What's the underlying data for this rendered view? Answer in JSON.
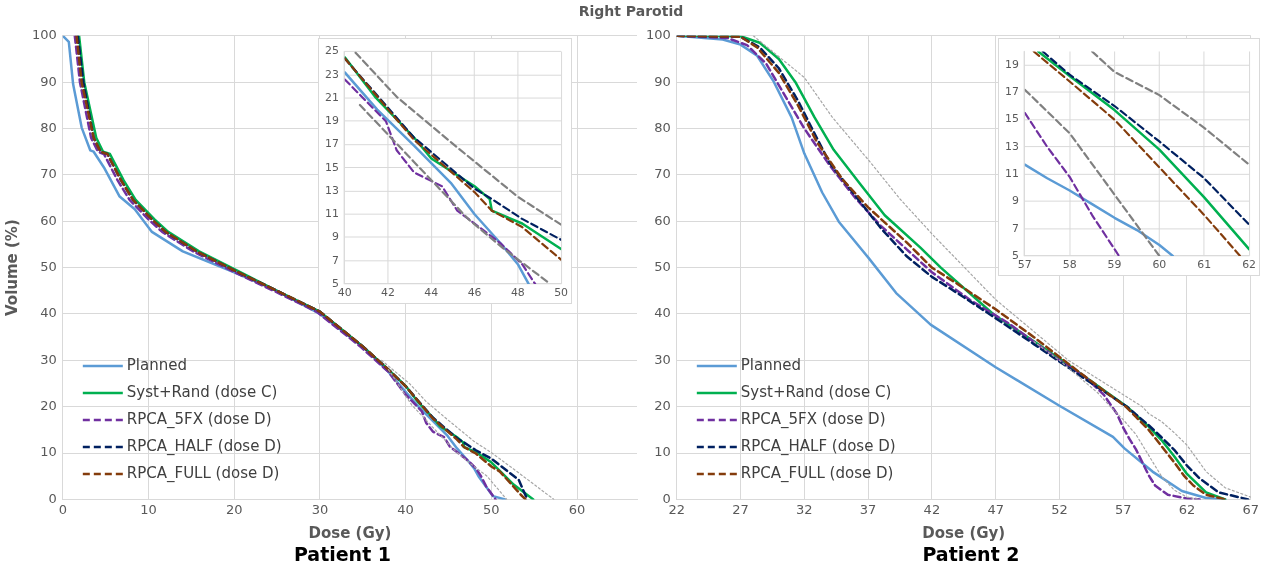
{
  "chart_data": [
    {
      "type": "line",
      "title": "Right Parotid",
      "xlabel": "Dose (Gy)",
      "ylabel": "Volume (%)",
      "annotations": [
        "Patient 1"
      ],
      "xlim": [
        0,
        67
      ],
      "xticks": [
        0,
        10,
        20,
        30,
        40,
        50,
        60
      ],
      "ylim": [
        0,
        100
      ],
      "yticks": [
        0,
        10,
        20,
        30,
        40,
        50,
        60,
        70,
        80,
        90,
        100
      ],
      "grid": true,
      "legend": "bottom left",
      "marker": "none",
      "series": [
        {
          "name": "Planned",
          "color": "#5b9bd5",
          "line_style": "solid",
          "x": [
            0,
            0.7,
            1.2,
            2.2,
            3.2,
            3.6,
            4.8,
            6.6,
            8.4,
            10.4,
            14,
            20,
            25,
            30,
            35,
            38,
            40,
            41.5,
            43.2,
            44.9,
            46,
            47.2,
            48,
            48.5,
            50.2,
            51.6
          ],
          "values": [
            100,
            98.7,
            89.6,
            80.2,
            75.3,
            75,
            71.6,
            65.4,
            62.6,
            57.7,
            53.5,
            49,
            45,
            40,
            33,
            27.5,
            23.2,
            20,
            16.9,
            13.7,
            11,
            8.5,
            6.7,
            5,
            0.7,
            0
          ]
        },
        {
          "name": "Syst+Rand (dose C)",
          "color": "#00b050",
          "line_style": "solid",
          "x": [
            1.9,
            2.5,
            3.9,
            4.7,
            5.5,
            7.1,
            8.5,
            10.7,
            12.3,
            15.9,
            20.3,
            25,
            30,
            35,
            38,
            40,
            41.4,
            43.2,
            44,
            46,
            46.7,
            46.8,
            48.2,
            50,
            52.6,
            54.9
          ],
          "values": [
            100,
            90,
            78,
            75,
            74.5,
            68.8,
            64.6,
            60.4,
            57.7,
            53.5,
            49.4,
            45,
            40.5,
            33,
            28,
            24.5,
            21.1,
            17.6,
            15.8,
            13.4,
            12.3,
            11.3,
            10.2,
            8,
            3.2,
            0
          ]
        },
        {
          "name": "RPCA_5FX (dose D)",
          "color": "#7030a0",
          "line_style": "dashed",
          "x": [
            1.4,
            2,
            3.3,
            4.1,
            4.8,
            6.4,
            7.8,
            10,
            11.6,
            15.2,
            19.6,
            24.6,
            29.6,
            34.7,
            38,
            40,
            41.9,
            42.4,
            43.2,
            44.5,
            45.2,
            46,
            47.2,
            48.2,
            48.8,
            49.4,
            50.5
          ],
          "values": [
            100,
            90,
            78,
            75,
            74.5,
            68.8,
            64.6,
            60.4,
            57.7,
            53.5,
            49.4,
            45,
            40.5,
            33,
            27.5,
            22.6,
            19,
            16.5,
            14.6,
            13.4,
            11.3,
            10.2,
            8.5,
            6.7,
            5,
            2.8,
            0
          ]
        },
        {
          "name": "RPCA_HALF (dose D)",
          "color": "#002060",
          "line_style": "dashed",
          "x": [
            1.75,
            2.4,
            3.6,
            4.4,
            5.2,
            6.8,
            8.2,
            10.4,
            12,
            15.6,
            20,
            25,
            30,
            35,
            38,
            40,
            43.2,
            46,
            46.8,
            48.2,
            50,
            53.2,
            54.2
          ],
          "values": [
            100,
            90,
            78,
            75,
            74.5,
            68.8,
            64.6,
            60.4,
            57.7,
            53.5,
            49.4,
            45,
            40.5,
            33,
            28,
            24.4,
            17.6,
            13.2,
            12.3,
            10.6,
            8.8,
            4.2,
            0
          ]
        },
        {
          "name": "RPCA_FULL (dose D)",
          "color": "#843c0c",
          "line_style": "dashed",
          "x": [
            1.6,
            2.2,
            3.6,
            4.4,
            5.2,
            6.8,
            8.2,
            10.4,
            12,
            15.6,
            20,
            25,
            30,
            35,
            38,
            40,
            43.2,
            46,
            46.8,
            48.2,
            50,
            51,
            53.6,
            54
          ],
          "values": [
            100,
            90,
            78,
            75,
            74.5,
            68.8,
            64.6,
            60.4,
            57.7,
            53.5,
            49.4,
            45,
            40.5,
            33,
            28,
            24.4,
            17.4,
            12.9,
            11.3,
            9.9,
            7.1,
            6,
            0.7,
            0
          ]
        },
        {
          "color": "#a6a6a6",
          "line_style": "dotted",
          "x": [
            37.2,
            40.5,
            42.4,
            44.9,
            48,
            50,
            53,
            57.3
          ],
          "values": [
            30,
            24.9,
            21.1,
            17.2,
            12.5,
            10.1,
            6,
            0
          ]
        },
        {
          "color": "#a6a6a6",
          "line_style": "dotted",
          "x": [
            38,
            40.7,
            43.2,
            45.7,
            47.3,
            49.5,
            51.8
          ],
          "values": [
            28,
            20.4,
            15.5,
            10.6,
            8.1,
            5,
            0
          ]
        }
      ]
    },
    {
      "type": "line",
      "xlim": [
        40,
        50
      ],
      "xticks": [
        40,
        42,
        44,
        46,
        48,
        50
      ],
      "ylim": [
        5,
        25
      ],
      "yticks": [
        5,
        7,
        9,
        11,
        13,
        15,
        17,
        19,
        21,
        23,
        25
      ],
      "grid": true,
      "marker": "none",
      "series": [
        {
          "color": "#5b9bd5",
          "line_style": "solid",
          "x": [
            40,
            41.5,
            43.2,
            44.9,
            46,
            47.2,
            48,
            48.5
          ],
          "values": [
            23.2,
            20,
            16.9,
            13.7,
            11,
            8.5,
            6.7,
            5
          ]
        },
        {
          "color": "#00b050",
          "line_style": "solid",
          "x": [
            40,
            41.4,
            43.2,
            44,
            46,
            46.7,
            46.8,
            48.2,
            50
          ],
          "values": [
            24.5,
            21.1,
            17.6,
            15.8,
            13.4,
            12.3,
            11.3,
            10.2,
            8
          ]
        },
        {
          "color": "#7030a0",
          "line_style": "dashed",
          "x": [
            40,
            41.9,
            42.4,
            43.2,
            44.5,
            45.2,
            46,
            47.2,
            48.2,
            48.8
          ],
          "values": [
            22.6,
            19,
            16.5,
            14.6,
            13.4,
            11.3,
            10.2,
            8.5,
            6.7,
            5
          ]
        },
        {
          "color": "#002060",
          "line_style": "dashed",
          "x": [
            40,
            43.2,
            46,
            46.8,
            48.2,
            50
          ],
          "values": [
            24.4,
            17.6,
            13.2,
            12.3,
            10.6,
            8.8
          ]
        },
        {
          "color": "#843c0c",
          "line_style": "dashed",
          "x": [
            40,
            43.2,
            46,
            46.8,
            48.2,
            50
          ],
          "values": [
            24.4,
            17.4,
            12.9,
            11.3,
            9.9,
            7.1
          ]
        },
        {
          "color": "#808080",
          "line_style": "dashed",
          "x": [
            40.5,
            42.4,
            44.9,
            48,
            50
          ],
          "values": [
            24.9,
            21.1,
            17.2,
            12.5,
            10.1
          ]
        },
        {
          "color": "#808080",
          "line_style": "dashed",
          "x": [
            40.7,
            43.2,
            45.7,
            47.3,
            49.5
          ],
          "values": [
            20.4,
            15.5,
            10.6,
            8.1,
            5
          ]
        }
      ]
    },
    {
      "type": "line",
      "xlabel": "Dose (Gy)",
      "annotations": [
        "Patient 2"
      ],
      "xlim": [
        22,
        67
      ],
      "xticks": [
        22,
        27,
        32,
        37,
        42,
        47,
        52,
        57,
        62,
        67
      ],
      "ylim": [
        0,
        100
      ],
      "yticks": [
        0,
        10,
        20,
        30,
        40,
        50,
        60,
        70,
        80,
        90,
        100
      ],
      "grid": true,
      "legend": "bottom left",
      "marker": "none",
      "series": [
        {
          "name": "Planned",
          "color": "#5b9bd5",
          "line_style": "solid",
          "x": [
            22,
            25.6,
            27,
            28.3,
            29.6,
            31,
            32,
            33.4,
            34.7,
            37,
            39.2,
            41.9,
            47,
            52,
            56.2,
            57.1,
            59.3,
            61.6,
            63.5,
            65
          ],
          "values": [
            100,
            99.2,
            98.1,
            95.7,
            90.1,
            82.4,
            74.6,
            66.2,
            59.9,
            52.2,
            44.5,
            37.7,
            28.5,
            20.2,
            13.5,
            11,
            6,
            1.8,
            0.3,
            0
          ]
        },
        {
          "name": "Syst+Rand (dose C)",
          "color": "#00b050",
          "line_style": "solid",
          "x": [
            22,
            27,
            28.5,
            30,
            31.3,
            32.8,
            34.3,
            36.3,
            38.3,
            41.1,
            42.7,
            46.8,
            52.2,
            57.3,
            58,
            59,
            60,
            61,
            62,
            63.5,
            65
          ],
          "values": [
            100,
            99.9,
            98.5,
            95,
            90,
            82.4,
            75.4,
            68.3,
            61.3,
            54.3,
            50,
            40,
            30,
            20,
            18.2,
            15.7,
            12.8,
            9.3,
            5.5,
            1.5,
            0
          ]
        },
        {
          "name": "RPCA_5FX (dose D)",
          "color": "#7030a0",
          "line_style": "dashed",
          "x": [
            22,
            26,
            27.5,
            29,
            30.5,
            32,
            34,
            36,
            38,
            40,
            42,
            45,
            48,
            52,
            54,
            55.5,
            56.5,
            57,
            57.5,
            58,
            58.5,
            59,
            59.5,
            60.5,
            62,
            63
          ],
          "values": [
            100,
            99.5,
            98,
            94,
            87,
            80,
            72,
            65,
            59,
            54,
            49,
            43,
            38,
            30,
            26.5,
            22.5,
            18.5,
            15.5,
            13,
            10.8,
            8,
            5.2,
            3,
            1,
            0.2,
            0
          ]
        },
        {
          "name": "RPCA_HALF (dose D)",
          "color": "#002060",
          "line_style": "dashed",
          "x": [
            22,
            27,
            28.5,
            30,
            31.5,
            32.6,
            34,
            36,
            38,
            40,
            42,
            44,
            46.5,
            50,
            54,
            57.3,
            58,
            59,
            60,
            61,
            62,
            63,
            64.5,
            66.8
          ],
          "values": [
            100,
            99.8,
            97.5,
            93,
            86,
            80,
            72.5,
            65.5,
            58.5,
            52.5,
            48,
            44.5,
            40,
            33.5,
            26,
            20,
            18.3,
            16,
            13.4,
            10.7,
            7.3,
            4.5,
            1.5,
            0
          ]
        },
        {
          "name": "RPCA_FULL (dose D)",
          "color": "#843c0c",
          "line_style": "dashed",
          "x": [
            22,
            27,
            28.3,
            30,
            31.5,
            33,
            35,
            37,
            40,
            42,
            44,
            47,
            50,
            54,
            57.2,
            58,
            59,
            60,
            61,
            61.8,
            62.5,
            63.5,
            65
          ],
          "values": [
            100,
            99.8,
            97.5,
            92,
            85,
            77,
            69,
            63,
            55.5,
            50,
            46.5,
            41,
            35,
            26.5,
            20,
            17.8,
            15,
            11.5,
            8,
            5,
            3,
            1,
            0
          ]
        },
        {
          "color": "#a6a6a6",
          "line_style": "dotted",
          "x": [
            28,
            32,
            34.2,
            37,
            39.5,
            42.1,
            47,
            52.7,
            58.5,
            59,
            60,
            61,
            62,
            63.5,
            65,
            67
          ],
          "values": [
            100,
            91,
            82.4,
            73.3,
            64.8,
            57,
            43.1,
            30,
            20,
            18.5,
            16.8,
            14.4,
            11.7,
            6,
            2.5,
            0.5
          ]
        },
        {
          "color": "#a6a6a6",
          "line_style": "dotted",
          "x": [
            50,
            52,
            55,
            56,
            57,
            58,
            59,
            60,
            61,
            62,
            63
          ],
          "values": [
            34,
            30,
            23,
            20,
            17.2,
            14,
            9.5,
            5,
            2,
            0.5,
            0
          ]
        }
      ]
    },
    {
      "type": "line",
      "xlim": [
        57,
        62
      ],
      "xticks": [
        57,
        58,
        59,
        60,
        61,
        62
      ],
      "ylim": [
        5,
        20
      ],
      "yticks": [
        5,
        7,
        9,
        11,
        13,
        15,
        17,
        19
      ],
      "grid": true,
      "marker": "none",
      "series": [
        {
          "color": "#5b9bd5",
          "line_style": "solid",
          "x": [
            57,
            57.5,
            58,
            58.5,
            59,
            59.5,
            60,
            60.3
          ],
          "values": [
            11.7,
            10.7,
            9.8,
            8.8,
            7.8,
            6.9,
            5.8,
            5
          ]
        },
        {
          "color": "#00b050",
          "line_style": "solid",
          "x": [
            57.3,
            58,
            59,
            60,
            61,
            62
          ],
          "values": [
            20,
            18.2,
            15.7,
            12.8,
            9.3,
            5.5
          ]
        },
        {
          "color": "#7030a0",
          "line_style": "dashed",
          "x": [
            57,
            57.5,
            58,
            58.5,
            59.1
          ],
          "values": [
            15.5,
            13,
            10.8,
            8,
            5
          ]
        },
        {
          "color": "#002060",
          "line_style": "dashed",
          "x": [
            57.4,
            58,
            59,
            60,
            61,
            62
          ],
          "values": [
            20,
            18.3,
            16,
            13.4,
            10.7,
            7.3
          ]
        },
        {
          "color": "#843c0c",
          "line_style": "dashed",
          "x": [
            57.2,
            58,
            59,
            60,
            61,
            61.8
          ],
          "values": [
            20,
            17.8,
            15,
            11.5,
            8,
            5
          ]
        },
        {
          "color": "#808080",
          "line_style": "dashed",
          "x": [
            58.5,
            59,
            60,
            61,
            62
          ],
          "values": [
            20,
            18.5,
            16.8,
            14.4,
            11.7
          ]
        },
        {
          "color": "#808080",
          "line_style": "dashed",
          "x": [
            57,
            58,
            59,
            60
          ],
          "values": [
            17.2,
            14,
            9.5,
            5
          ]
        }
      ]
    }
  ]
}
